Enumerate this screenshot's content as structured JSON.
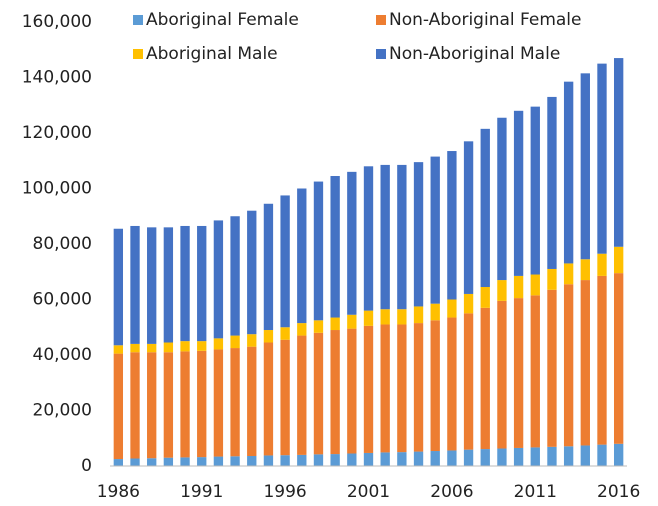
{
  "chart_data": {
    "type": "stacked_bar",
    "categories": [
      "1986",
      null,
      null,
      null,
      null,
      "1991",
      null,
      null,
      null,
      null,
      "1996",
      null,
      null,
      null,
      null,
      "2001",
      null,
      null,
      null,
      null,
      "2006",
      null,
      null,
      null,
      null,
      "2011",
      null,
      null,
      null,
      null,
      "2016"
    ],
    "series": [
      {
        "name": "Aboriginal Female",
        "color": "#5b9bd5",
        "values": [
          2500,
          2700,
          2800,
          3000,
          3100,
          3200,
          3400,
          3500,
          3600,
          3800,
          3900,
          4000,
          4200,
          4300,
          4500,
          4700,
          4900,
          5000,
          5200,
          5400,
          5600,
          5900,
          6100,
          6300,
          6500,
          6700,
          6900,
          7100,
          7400,
          7700,
          8000
        ]
      },
      {
        "name": "Non-Aboriginal Female",
        "color": "#ed7d31",
        "values": [
          38000,
          38300,
          38200,
          38000,
          38200,
          38300,
          38600,
          39000,
          39400,
          40700,
          41600,
          43000,
          43800,
          44700,
          45000,
          45800,
          46100,
          46000,
          46300,
          47100,
          47900,
          49100,
          50900,
          53200,
          54000,
          54800,
          56600,
          58400,
          59600,
          60800,
          61500
        ]
      },
      {
        "name": "Aboriginal Male",
        "color": "#ffc000",
        "values": [
          3000,
          3000,
          3000,
          3500,
          3700,
          3500,
          4000,
          4500,
          4500,
          4500,
          4500,
          4500,
          4500,
          4500,
          5000,
          5500,
          5500,
          5500,
          6000,
          6000,
          6500,
          7000,
          7500,
          7500,
          8000,
          7500,
          7500,
          7500,
          7500,
          8000,
          9500
        ]
      },
      {
        "name": "Non-Aboriginal Male",
        "color": "#4472c4",
        "values": [
          42000,
          42500,
          42000,
          41500,
          41500,
          41500,
          42500,
          43000,
          44500,
          45500,
          47500,
          48500,
          50000,
          51000,
          51500,
          52000,
          52000,
          52000,
          52000,
          53000,
          53500,
          55000,
          57000,
          58500,
          59500,
          60500,
          62000,
          65500,
          67000,
          68500,
          68000
        ]
      }
    ],
    "ylim": [
      0,
      160000
    ],
    "yticks": [
      0,
      {
        "value": 20000,
        "label": "20,000"
      },
      {
        "value": 40000,
        "label": "40,000"
      },
      {
        "value": 60000,
        "label": "60,000"
      },
      {
        "value": 80000,
        "label": "80,000"
      },
      {
        "value": 100000,
        "label": "100,000"
      },
      {
        "value": 120000,
        "label": "120,000"
      },
      {
        "value": 140000,
        "label": "140,000"
      },
      {
        "value": 160000,
        "label": "160,000"
      }
    ],
    "grid": false
  }
}
